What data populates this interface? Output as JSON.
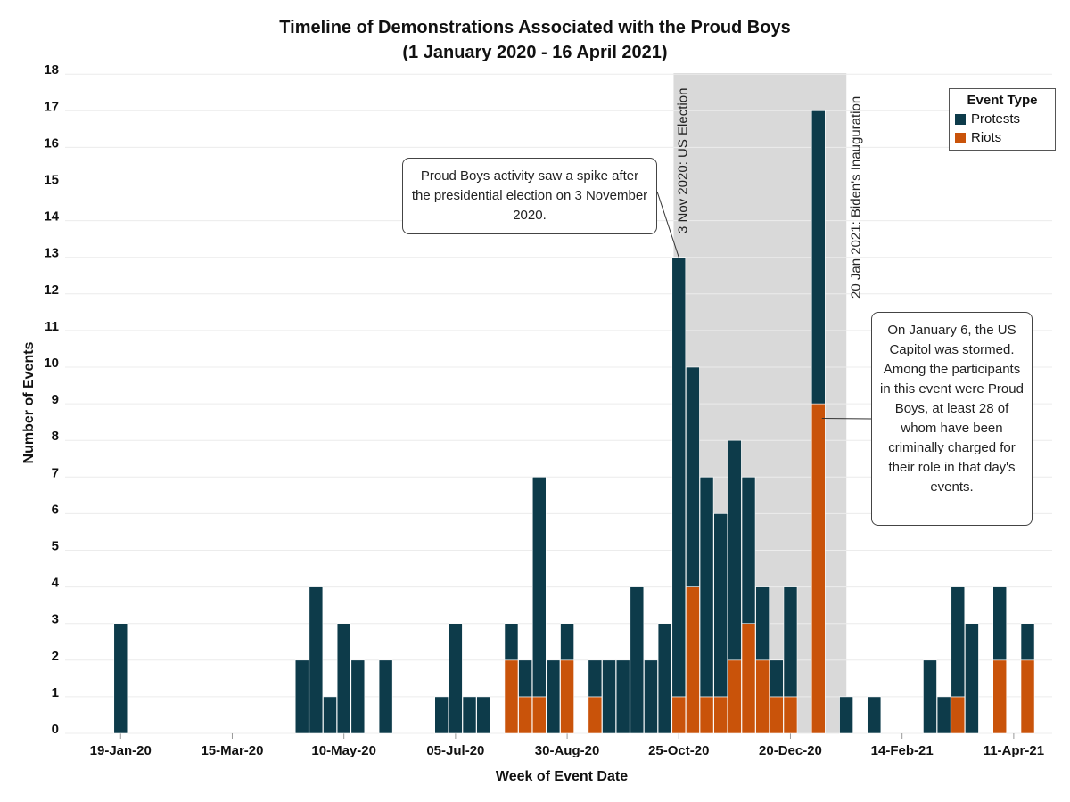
{
  "chart_data": {
    "type": "bar",
    "stacked": true,
    "title": "Timeline of Demonstrations Associated with the Proud Boys",
    "subtitle": "(1 January 2020 - 16 April 2021)",
    "xlabel": "Week of Event Date",
    "ylabel": "Number of Events",
    "ylim": [
      0,
      18
    ],
    "yticks": [
      0,
      1,
      2,
      3,
      4,
      5,
      6,
      7,
      8,
      9,
      10,
      11,
      12,
      13,
      14,
      15,
      16,
      17,
      18
    ],
    "x_tick_labels": [
      {
        "label": "19-Jan-20",
        "week": 3
      },
      {
        "label": "15-Mar-20",
        "week": 11
      },
      {
        "label": "10-May-20",
        "week": 19
      },
      {
        "label": "05-Jul-20",
        "week": 27
      },
      {
        "label": "30-Aug-20",
        "week": 35
      },
      {
        "label": "25-Oct-20",
        "week": 43
      },
      {
        "label": "20-Dec-20",
        "week": 51
      },
      {
        "label": "14-Feb-21",
        "week": 59
      },
      {
        "label": "11-Apr-21",
        "week": 67
      }
    ],
    "series": [
      {
        "name": "Protests",
        "color": "#0d3b4a",
        "values": [
          0,
          0,
          0,
          3,
          0,
          0,
          0,
          0,
          0,
          0,
          0,
          0,
          0,
          0,
          0,
          0,
          2,
          4,
          1,
          3,
          2,
          0,
          2,
          0,
          0,
          0,
          1,
          3,
          1,
          1,
          0,
          1,
          1,
          6,
          2,
          1,
          0,
          1,
          2,
          2,
          4,
          2,
          3,
          12,
          6,
          6,
          5,
          6,
          4,
          2,
          1,
          3,
          0,
          8,
          0,
          1,
          0,
          1,
          0,
          0,
          0,
          2,
          1,
          3,
          3,
          0,
          2,
          0,
          1,
          0
        ],
        "week_start": 0
      },
      {
        "name": "Riots",
        "color": "#c9530a",
        "values": [
          0,
          0,
          0,
          0,
          0,
          0,
          0,
          0,
          0,
          0,
          0,
          0,
          0,
          0,
          0,
          0,
          0,
          0,
          0,
          0,
          0,
          0,
          0,
          0,
          0,
          0,
          0,
          0,
          0,
          0,
          0,
          2,
          1,
          1,
          0,
          2,
          0,
          1,
          0,
          0,
          0,
          0,
          0,
          1,
          4,
          1,
          1,
          2,
          3,
          2,
          1,
          1,
          0,
          9,
          0,
          0,
          0,
          0,
          0,
          0,
          0,
          0,
          0,
          1,
          0,
          0,
          2,
          0,
          2,
          0
        ],
        "week_start": 0
      }
    ],
    "shaded_period": {
      "from_week": 43,
      "to_week": 55
    },
    "reference_lines": [
      {
        "label": "3 Nov 2020: US Election",
        "week": 43
      },
      {
        "label": "20 Jan 2021: Biden's Inauguration",
        "week": 55
      }
    ],
    "annotations": [
      {
        "text": "Proud Boys activity saw a spike after the presidential election on 3 November 2020."
      },
      {
        "text": "On January 6, the US Capitol was stormed. Among the participants in this event were Proud Boys, at least 28 of whom have been criminally charged for their role in that day's events."
      }
    ],
    "legend": {
      "title": "Event Type",
      "position": "top-right"
    }
  }
}
